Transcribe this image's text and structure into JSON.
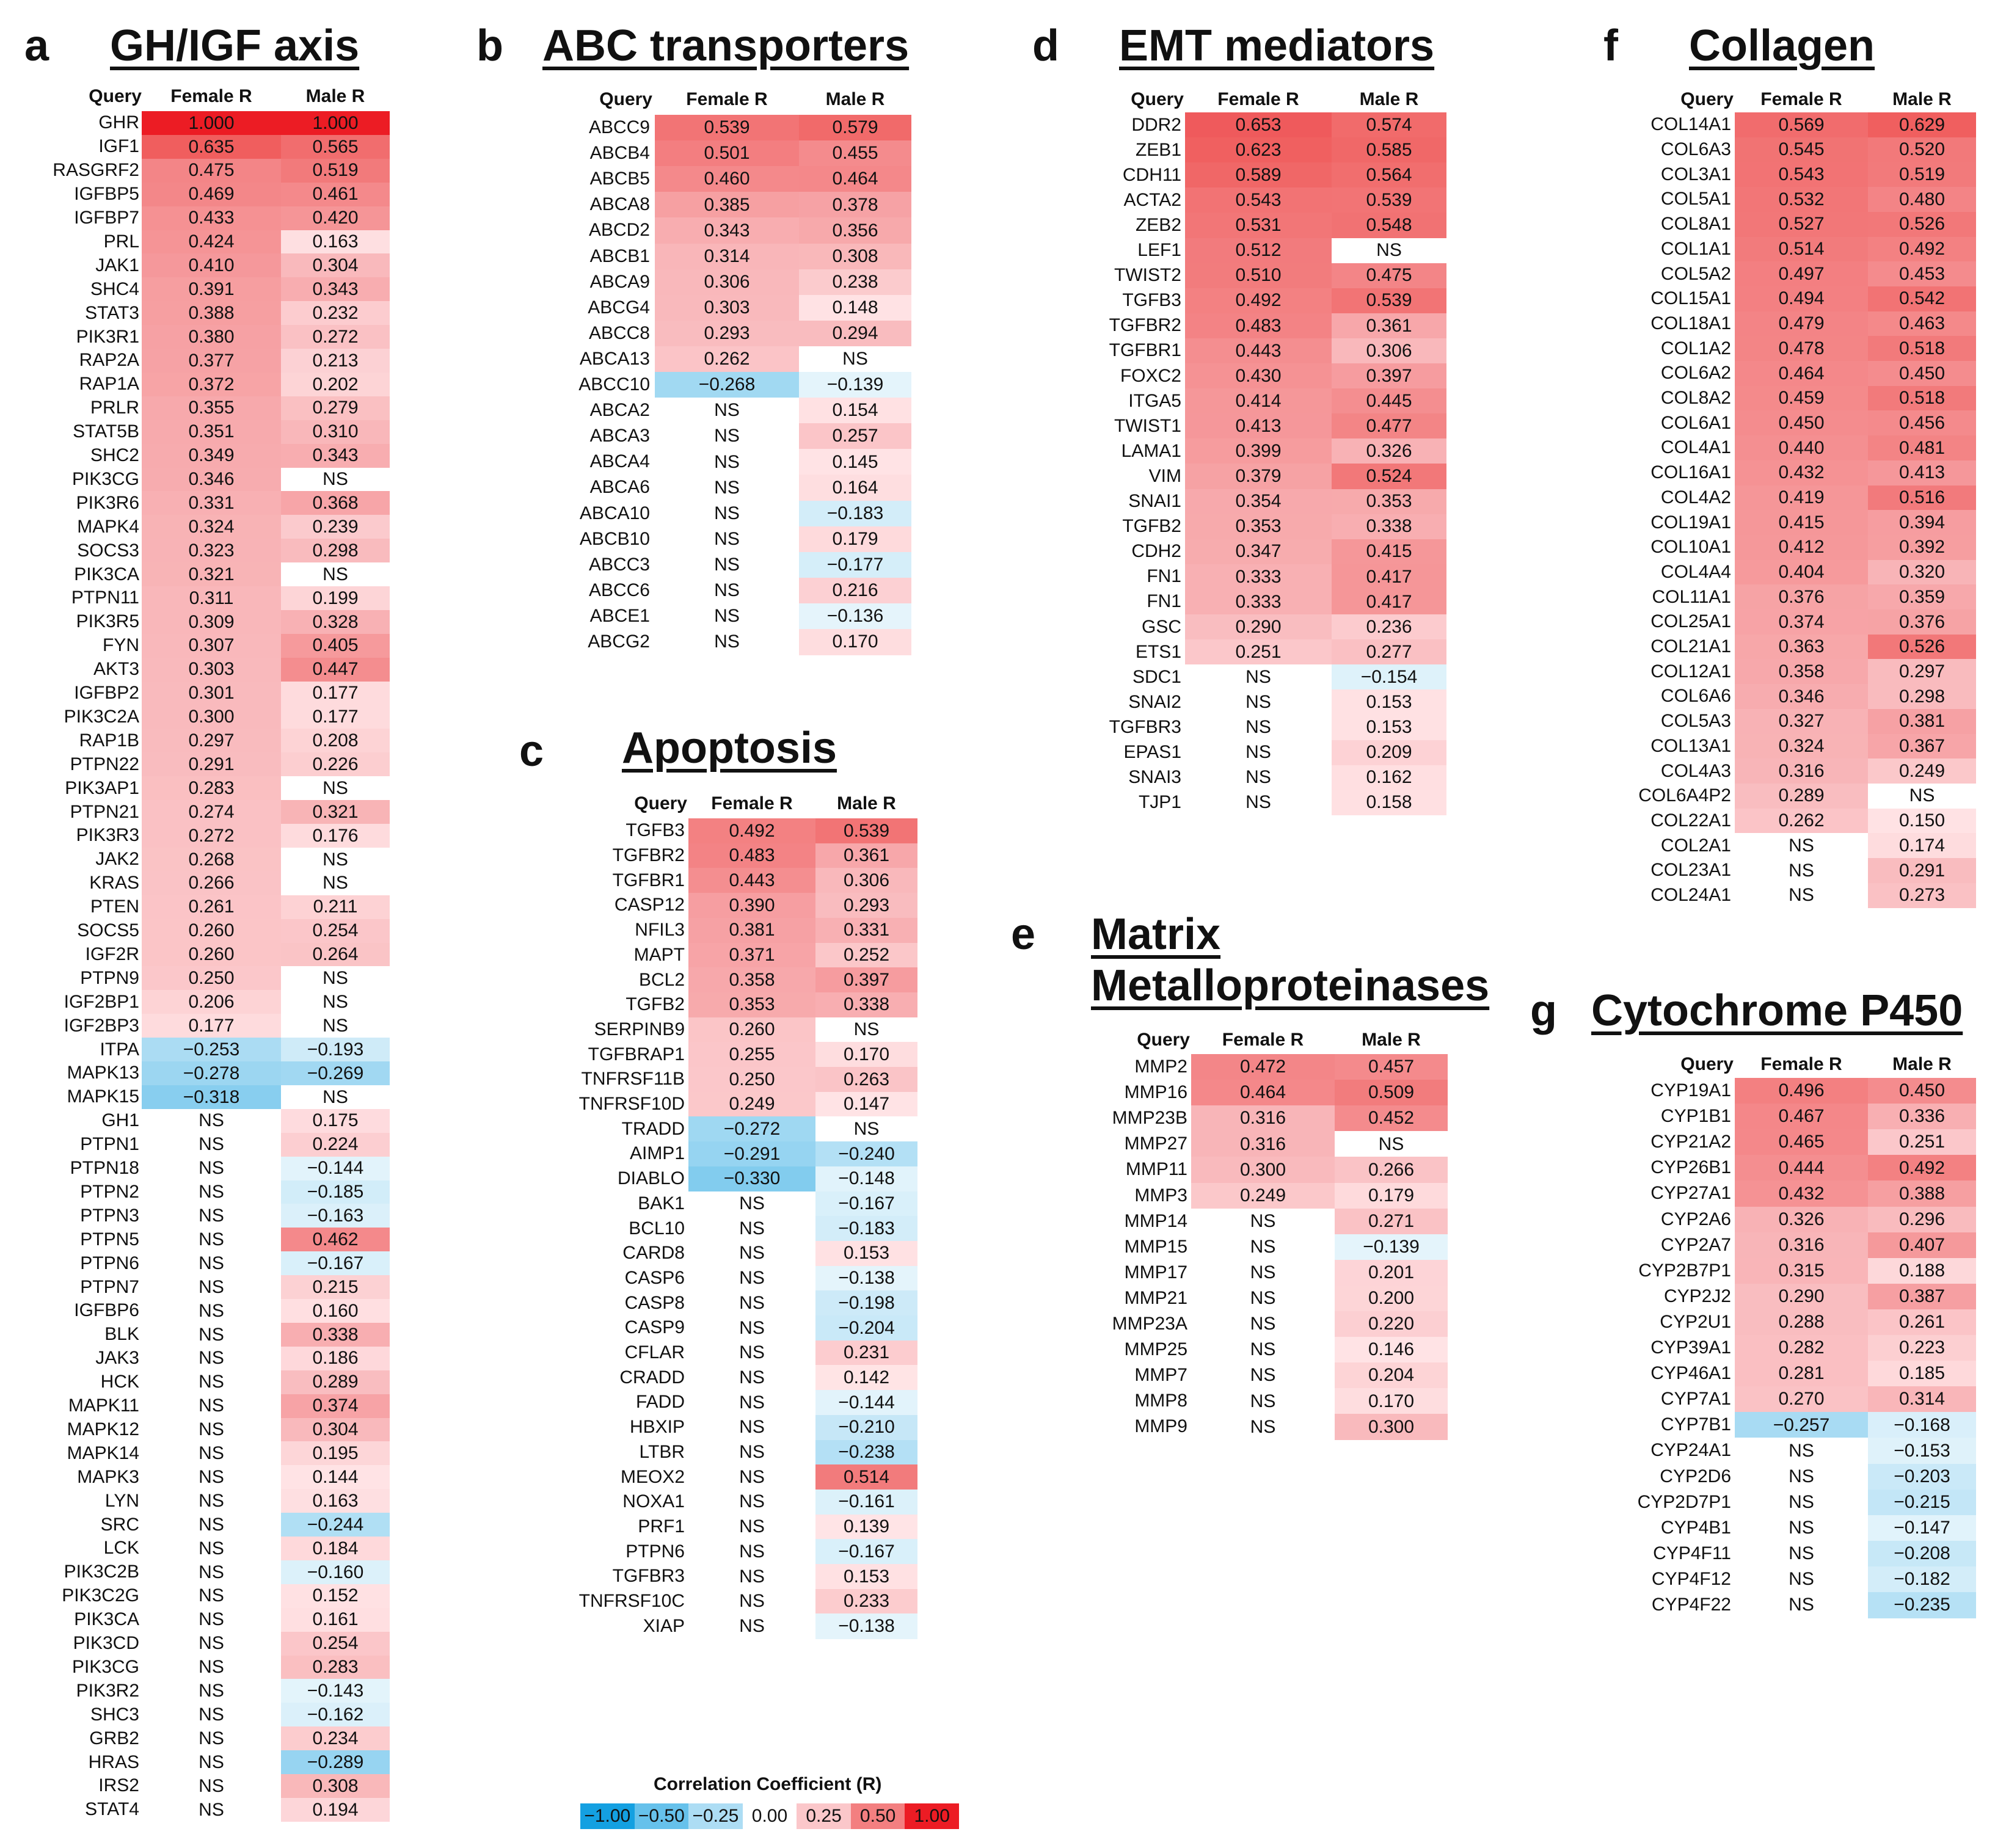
{
  "chart_data": [
    {
      "type": "table",
      "letter": "a",
      "title": "GH/IGF axis",
      "columns": [
        "Query",
        "Female R",
        "Male R"
      ],
      "rows": [
        [
          "GHR",
          "1.000",
          "1.000"
        ],
        [
          "IGF1",
          "0.635",
          "0.565"
        ],
        [
          "RASGRF2",
          "0.475",
          "0.519"
        ],
        [
          "IGFBP5",
          "0.469",
          "0.461"
        ],
        [
          "IGFBP7",
          "0.433",
          "0.420"
        ],
        [
          "PRL",
          "0.424",
          "0.163"
        ],
        [
          "JAK1",
          "0.410",
          "0.304"
        ],
        [
          "SHC4",
          "0.391",
          "0.343"
        ],
        [
          "STAT3",
          "0.388",
          "0.232"
        ],
        [
          "PIK3R1",
          "0.380",
          "0.272"
        ],
        [
          "RAP2A",
          "0.377",
          "0.213"
        ],
        [
          "RAP1A",
          "0.372",
          "0.202"
        ],
        [
          "PRLR",
          "0.355",
          "0.279"
        ],
        [
          "STAT5B",
          "0.351",
          "0.310"
        ],
        [
          "SHC2",
          "0.349",
          "0.343"
        ],
        [
          "PIK3CG",
          "0.346",
          "NS"
        ],
        [
          "PIK3R6",
          "0.331",
          "0.368"
        ],
        [
          "MAPK4",
          "0.324",
          "0.239"
        ],
        [
          "SOCS3",
          "0.323",
          "0.298"
        ],
        [
          "PIK3CA",
          "0.321",
          "NS"
        ],
        [
          "PTPN11",
          "0.311",
          "0.199"
        ],
        [
          "PIK3R5",
          "0.309",
          "0.328"
        ],
        [
          "FYN",
          "0.307",
          "0.405"
        ],
        [
          "AKT3",
          "0.303",
          "0.447"
        ],
        [
          "IGFBP2",
          "0.301",
          "0.177"
        ],
        [
          "PIK3C2A",
          "0.300",
          "0.177"
        ],
        [
          "RAP1B",
          "0.297",
          "0.208"
        ],
        [
          "PTPN22",
          "0.291",
          "0.226"
        ],
        [
          "PIK3AP1",
          "0.283",
          "NS"
        ],
        [
          "PTPN21",
          "0.274",
          "0.321"
        ],
        [
          "PIK3R3",
          "0.272",
          "0.176"
        ],
        [
          "JAK2",
          "0.268",
          "NS"
        ],
        [
          "KRAS",
          "0.266",
          "NS"
        ],
        [
          "PTEN",
          "0.261",
          "0.211"
        ],
        [
          "SOCS5",
          "0.260",
          "0.254"
        ],
        [
          "IGF2R",
          "0.260",
          "0.264"
        ],
        [
          "PTPN9",
          "0.250",
          "NS"
        ],
        [
          "IGF2BP1",
          "0.206",
          "NS"
        ],
        [
          "IGF2BP3",
          "0.177",
          "NS"
        ],
        [
          "ITPA",
          "−0.253",
          "−0.193"
        ],
        [
          "MAPK13",
          "−0.278",
          "−0.269"
        ],
        [
          "MAPK15",
          "−0.318",
          "NS"
        ],
        [
          "GH1",
          "NS",
          "0.175"
        ],
        [
          "PTPN1",
          "NS",
          "0.224"
        ],
        [
          "PTPN18",
          "NS",
          "−0.144"
        ],
        [
          "PTPN2",
          "NS",
          "−0.185"
        ],
        [
          "PTPN3",
          "NS",
          "−0.163"
        ],
        [
          "PTPN5",
          "NS",
          "0.462"
        ],
        [
          "PTPN6",
          "NS",
          "−0.167"
        ],
        [
          "PTPN7",
          "NS",
          "0.215"
        ],
        [
          "IGFBP6",
          "NS",
          "0.160"
        ],
        [
          "BLK",
          "NS",
          "0.338"
        ],
        [
          "JAK3",
          "NS",
          "0.186"
        ],
        [
          "HCK",
          "NS",
          "0.289"
        ],
        [
          "MAPK11",
          "NS",
          "0.374"
        ],
        [
          "MAPK12",
          "NS",
          "0.304"
        ],
        [
          "MAPK14",
          "NS",
          "0.195"
        ],
        [
          "MAPK3",
          "NS",
          "0.144"
        ],
        [
          "LYN",
          "NS",
          "0.163"
        ],
        [
          "SRC",
          "NS",
          "−0.244"
        ],
        [
          "LCK",
          "NS",
          "0.184"
        ],
        [
          "PIK3C2B",
          "NS",
          "−0.160"
        ],
        [
          "PIK3C2G",
          "NS",
          "0.152"
        ],
        [
          "PIK3CA",
          "NS",
          "0.161"
        ],
        [
          "PIK3CD",
          "NS",
          "0.254"
        ],
        [
          "PIK3CG",
          "NS",
          "0.283"
        ],
        [
          "PIK3R2",
          "NS",
          "−0.143"
        ],
        [
          "SHC3",
          "NS",
          "−0.162"
        ],
        [
          "GRB2",
          "NS",
          "0.234"
        ],
        [
          "HRAS",
          "NS",
          "−0.289"
        ],
        [
          "IRS2",
          "NS",
          "0.308"
        ],
        [
          "STAT4",
          "NS",
          "0.194"
        ]
      ]
    },
    {
      "type": "table",
      "letter": "b",
      "title": "ABC transporters",
      "columns": [
        "Query",
        "Female R",
        "Male R"
      ],
      "rows": [
        [
          "ABCC9",
          "0.539",
          "0.579"
        ],
        [
          "ABCB4",
          "0.501",
          "0.455"
        ],
        [
          "ABCB5",
          "0.460",
          "0.464"
        ],
        [
          "ABCA8",
          "0.385",
          "0.378"
        ],
        [
          "ABCD2",
          "0.343",
          "0.356"
        ],
        [
          "ABCB1",
          "0.314",
          "0.308"
        ],
        [
          "ABCA9",
          "0.306",
          "0.238"
        ],
        [
          "ABCG4",
          "0.303",
          "0.148"
        ],
        [
          "ABCC8",
          "0.293",
          "0.294"
        ],
        [
          "ABCA13",
          "0.262",
          "NS"
        ],
        [
          "ABCC10",
          "−0.268",
          "−0.139"
        ],
        [
          "ABCA2",
          "NS",
          "0.154"
        ],
        [
          "ABCA3",
          "NS",
          "0.257"
        ],
        [
          "ABCA4",
          "NS",
          "0.145"
        ],
        [
          "ABCA6",
          "NS",
          "0.164"
        ],
        [
          "ABCA10",
          "NS",
          "−0.183"
        ],
        [
          "ABCB10",
          "NS",
          "0.179"
        ],
        [
          "ABCC3",
          "NS",
          "−0.177"
        ],
        [
          "ABCC6",
          "NS",
          "0.216"
        ],
        [
          "ABCE1",
          "NS",
          "−0.136"
        ],
        [
          "ABCG2",
          "NS",
          "0.170"
        ]
      ]
    },
    {
      "type": "table",
      "letter": "c",
      "title": "Apoptosis",
      "columns": [
        "Query",
        "Female R",
        "Male R"
      ],
      "rows": [
        [
          "TGFB3",
          "0.492",
          "0.539"
        ],
        [
          "TGFBR2",
          "0.483",
          "0.361"
        ],
        [
          "TGFBR1",
          "0.443",
          "0.306"
        ],
        [
          "CASP12",
          "0.390",
          "0.293"
        ],
        [
          "NFIL3",
          "0.381",
          "0.331"
        ],
        [
          "MAPT",
          "0.371",
          "0.252"
        ],
        [
          "BCL2",
          "0.358",
          "0.397"
        ],
        [
          "TGFB2",
          "0.353",
          "0.338"
        ],
        [
          "SERPINB9",
          "0.260",
          "NS"
        ],
        [
          "TGFBRAP1",
          "0.255",
          "0.170"
        ],
        [
          "TNFRSF11B",
          "0.250",
          "0.263"
        ],
        [
          "TNFRSF10D",
          "0.249",
          "0.147"
        ],
        [
          "TRADD",
          "−0.272",
          "NS"
        ],
        [
          "AIMP1",
          "−0.291",
          "−0.240"
        ],
        [
          "DIABLO",
          "−0.330",
          "−0.148"
        ],
        [
          "BAK1",
          "NS",
          "−0.167"
        ],
        [
          "BCL10",
          "NS",
          "−0.183"
        ],
        [
          "CARD8",
          "NS",
          "0.153"
        ],
        [
          "CASP6",
          "NS",
          "−0.138"
        ],
        [
          "CASP8",
          "NS",
          "−0.198"
        ],
        [
          "CASP9",
          "NS",
          "−0.204"
        ],
        [
          "CFLAR",
          "NS",
          "0.231"
        ],
        [
          "CRADD",
          "NS",
          "0.142"
        ],
        [
          "FADD",
          "NS",
          "−0.144"
        ],
        [
          "HBXIP",
          "NS",
          "−0.210"
        ],
        [
          "LTBR",
          "NS",
          "−0.238"
        ],
        [
          "MEOX2",
          "NS",
          "0.514"
        ],
        [
          "NOXA1",
          "NS",
          "−0.161"
        ],
        [
          "PRF1",
          "NS",
          "0.139"
        ],
        [
          "PTPN6",
          "NS",
          "−0.167"
        ],
        [
          "TGFBR3",
          "NS",
          "0.153"
        ],
        [
          "TNFRSF10C",
          "NS",
          "0.233"
        ],
        [
          "XIAP",
          "NS",
          "−0.138"
        ]
      ]
    },
    {
      "type": "table",
      "letter": "d",
      "title": "EMT mediators",
      "columns": [
        "Query",
        "Female R",
        "Male R"
      ],
      "rows": [
        [
          "DDR2",
          "0.653",
          "0.574"
        ],
        [
          "ZEB1",
          "0.623",
          "0.585"
        ],
        [
          "CDH11",
          "0.589",
          "0.564"
        ],
        [
          "ACTA2",
          "0.543",
          "0.539"
        ],
        [
          "ZEB2",
          "0.531",
          "0.548"
        ],
        [
          "LEF1",
          "0.512",
          "NS"
        ],
        [
          "TWIST2",
          "0.510",
          "0.475"
        ],
        [
          "TGFB3",
          "0.492",
          "0.539"
        ],
        [
          "TGFBR2",
          "0.483",
          "0.361"
        ],
        [
          "TGFBR1",
          "0.443",
          "0.306"
        ],
        [
          "FOXC2",
          "0.430",
          "0.397"
        ],
        [
          "ITGA5",
          "0.414",
          "0.445"
        ],
        [
          "TWIST1",
          "0.413",
          "0.477"
        ],
        [
          "LAMA1",
          "0.399",
          "0.326"
        ],
        [
          "VIM",
          "0.379",
          "0.524"
        ],
        [
          "SNAI1",
          "0.354",
          "0.353"
        ],
        [
          "TGFB2",
          "0.353",
          "0.338"
        ],
        [
          "CDH2",
          "0.347",
          "0.415"
        ],
        [
          "FN1",
          "0.333",
          "0.417"
        ],
        [
          "FN1",
          "0.333",
          "0.417"
        ],
        [
          "GSC",
          "0.290",
          "0.236"
        ],
        [
          "ETS1",
          "0.251",
          "0.277"
        ],
        [
          "SDC1",
          "NS",
          "−0.154"
        ],
        [
          "SNAI2",
          "NS",
          "0.153"
        ],
        [
          "TGFBR3",
          "NS",
          "0.153"
        ],
        [
          "EPAS1",
          "NS",
          "0.209"
        ],
        [
          "SNAI3",
          "NS",
          "0.162"
        ],
        [
          "TJP1",
          "NS",
          "0.158"
        ]
      ]
    },
    {
      "type": "table",
      "letter": "e",
      "title": "Matrix",
      "title2": "Metalloproteinases",
      "columns": [
        "Query",
        "Female R",
        "Male R"
      ],
      "rows": [
        [
          "MMP2",
          "0.472",
          "0.457"
        ],
        [
          "MMP16",
          "0.464",
          "0.509"
        ],
        [
          "MMP23B",
          "0.316",
          "0.452"
        ],
        [
          "MMP27",
          "0.316",
          "NS"
        ],
        [
          "MMP11",
          "0.300",
          "0.266"
        ],
        [
          "MMP3",
          "0.249",
          "0.179"
        ],
        [
          "MMP14",
          "NS",
          "0.271"
        ],
        [
          "MMP15",
          "NS",
          "−0.139"
        ],
        [
          "MMP17",
          "NS",
          "0.201"
        ],
        [
          "MMP21",
          "NS",
          "0.200"
        ],
        [
          "MMP23A",
          "NS",
          "0.220"
        ],
        [
          "MMP25",
          "NS",
          "0.146"
        ],
        [
          "MMP7",
          "NS",
          "0.204"
        ],
        [
          "MMP8",
          "NS",
          "0.170"
        ],
        [
          "MMP9",
          "NS",
          "0.300"
        ]
      ]
    },
    {
      "type": "table",
      "letter": "f",
      "title": "Collagen",
      "columns": [
        "Query",
        "Female R",
        "Male R"
      ],
      "rows": [
        [
          "COL14A1",
          "0.569",
          "0.629"
        ],
        [
          "COL6A3",
          "0.545",
          "0.520"
        ],
        [
          "COL3A1",
          "0.543",
          "0.519"
        ],
        [
          "COL5A1",
          "0.532",
          "0.480"
        ],
        [
          "COL8A1",
          "0.527",
          "0.526"
        ],
        [
          "COL1A1",
          "0.514",
          "0.492"
        ],
        [
          "COL5A2",
          "0.497",
          "0.453"
        ],
        [
          "COL15A1",
          "0.494",
          "0.542"
        ],
        [
          "COL18A1",
          "0.479",
          "0.463"
        ],
        [
          "COL1A2",
          "0.478",
          "0.518"
        ],
        [
          "COL6A2",
          "0.464",
          "0.450"
        ],
        [
          "COL8A2",
          "0.459",
          "0.518"
        ],
        [
          "COL6A1",
          "0.450",
          "0.456"
        ],
        [
          "COL4A1",
          "0.440",
          "0.481"
        ],
        [
          "COL16A1",
          "0.432",
          "0.413"
        ],
        [
          "COL4A2",
          "0.419",
          "0.516"
        ],
        [
          "COL19A1",
          "0.415",
          "0.394"
        ],
        [
          "COL10A1",
          "0.412",
          "0.392"
        ],
        [
          "COL4A4",
          "0.404",
          "0.320"
        ],
        [
          "COL11A1",
          "0.376",
          "0.359"
        ],
        [
          "COL25A1",
          "0.374",
          "0.376"
        ],
        [
          "COL21A1",
          "0.363",
          "0.526"
        ],
        [
          "COL12A1",
          "0.358",
          "0.297"
        ],
        [
          "COL6A6",
          "0.346",
          "0.298"
        ],
        [
          "COL5A3",
          "0.327",
          "0.381"
        ],
        [
          "COL13A1",
          "0.324",
          "0.367"
        ],
        [
          "COL4A3",
          "0.316",
          "0.249"
        ],
        [
          "COL6A4P2",
          "0.289",
          "NS"
        ],
        [
          "COL22A1",
          "0.262",
          "0.150"
        ],
        [
          "COL2A1",
          "NS",
          "0.174"
        ],
        [
          "COL23A1",
          "NS",
          "0.291"
        ],
        [
          "COL24A1",
          "NS",
          "0.273"
        ]
      ]
    },
    {
      "type": "table",
      "letter": "g",
      "title": "Cytochrome P450",
      "columns": [
        "Query",
        "Female R",
        "Male R"
      ],
      "rows": [
        [
          "CYP19A1",
          "0.496",
          "0.450"
        ],
        [
          "CYP1B1",
          "0.467",
          "0.336"
        ],
        [
          "CYP21A2",
          "0.465",
          "0.251"
        ],
        [
          "CYP26B1",
          "0.444",
          "0.492"
        ],
        [
          "CYP27A1",
          "0.432",
          "0.388"
        ],
        [
          "CYP2A6",
          "0.326",
          "0.296"
        ],
        [
          "CYP2A7",
          "0.316",
          "0.407"
        ],
        [
          "CYP2B7P1",
          "0.315",
          "0.188"
        ],
        [
          "CYP2J2",
          "0.290",
          "0.387"
        ],
        [
          "CYP2U1",
          "0.288",
          "0.261"
        ],
        [
          "CYP39A1",
          "0.282",
          "0.223"
        ],
        [
          "CYP46A1",
          "0.281",
          "0.185"
        ],
        [
          "CYP7A1",
          "0.270",
          "0.314"
        ],
        [
          "CYP7B1",
          "−0.257",
          "−0.168"
        ],
        [
          "CYP24A1",
          "NS",
          "−0.153"
        ],
        [
          "CYP2D6",
          "NS",
          "−0.203"
        ],
        [
          "CYP2D7P1",
          "NS",
          "−0.215"
        ],
        [
          "CYP4B1",
          "NS",
          "−0.147"
        ],
        [
          "CYP4F11",
          "NS",
          "−0.208"
        ],
        [
          "CYP4F12",
          "NS",
          "−0.182"
        ],
        [
          "CYP4F22",
          "NS",
          "−0.235"
        ]
      ]
    }
  ],
  "legend": {
    "title": "Correlation Coefficient (R)",
    "labels": [
      "−1.00",
      "−0.50",
      "−0.25",
      "0.00",
      "0.25",
      "0.50",
      "1.00"
    ],
    "values": [
      -1.0,
      -0.5,
      -0.25,
      0.0,
      0.25,
      0.5,
      1.0
    ]
  },
  "colors": {
    "positive": "#f03c3c",
    "negative": "#2aaae6",
    "neutral": "#ffffff"
  }
}
